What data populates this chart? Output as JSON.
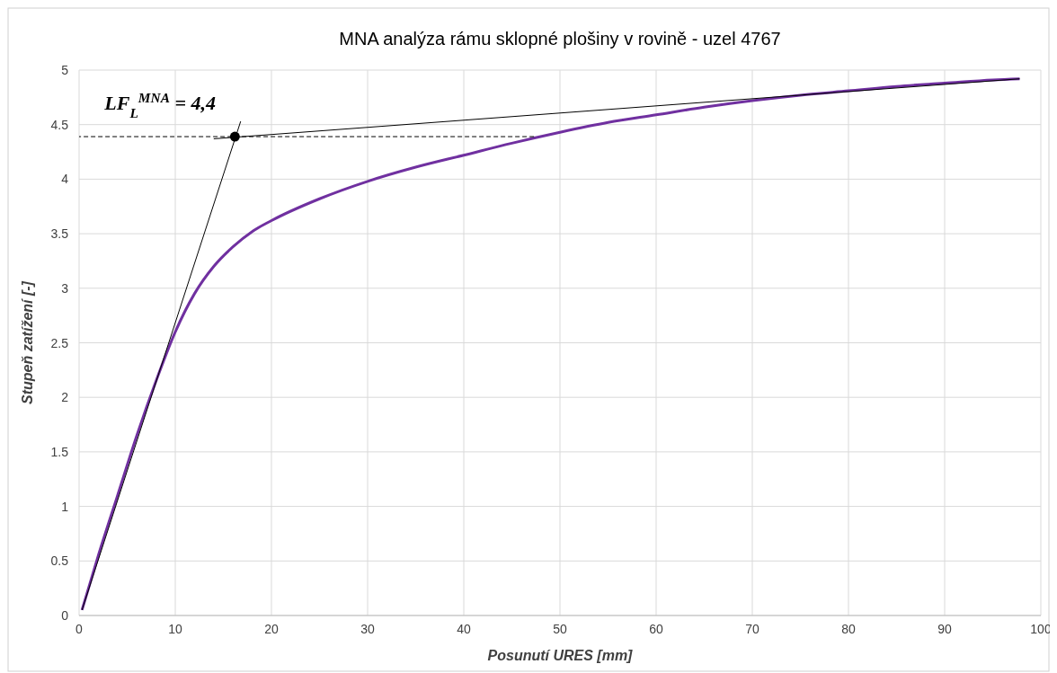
{
  "chart_data": {
    "type": "line",
    "title": "MNA analýza rámu sklopné plošiny v rovině - uzel 4767",
    "xlabel": "Posunutí URES [mm]",
    "ylabel": "Stupeň zatížení [-]",
    "xlim": [
      0,
      100
    ],
    "xticks": [
      0,
      10,
      20,
      30,
      40,
      50,
      60,
      70,
      80,
      90,
      100
    ],
    "ylim": [
      0,
      5
    ],
    "yticks": [
      0,
      0.5,
      1,
      1.5,
      2,
      2.5,
      3,
      3.5,
      4,
      4.5,
      5
    ],
    "grid": true,
    "series": [
      {
        "color": "#7030a0",
        "x": [
          0.3,
          2,
          4,
          6,
          8,
          10,
          12,
          14,
          16,
          18,
          20,
          25,
          30,
          35,
          40,
          45,
          50,
          55,
          60,
          65,
          70,
          75,
          80,
          85,
          90,
          95,
          97.8
        ],
        "values": [
          0.05,
          0.55,
          1.1,
          1.65,
          2.15,
          2.6,
          2.95,
          3.2,
          3.38,
          3.52,
          3.62,
          3.82,
          3.98,
          4.11,
          4.22,
          4.33,
          4.43,
          4.52,
          4.59,
          4.66,
          4.72,
          4.77,
          4.81,
          4.85,
          4.88,
          4.91,
          4.92
        ]
      },
      {
        "color": "#000000",
        "x": [
          0.3,
          16.8
        ],
        "values": [
          0.05,
          4.53
        ]
      },
      {
        "color": "#000000",
        "x": [
          14,
          97.8
        ],
        "values": [
          4.37,
          4.92
        ]
      },
      {
        "color": "#000000",
        "line_style": "dashed",
        "x": [
          0,
          47.3
        ],
        "values": [
          4.39,
          4.39
        ]
      },
      {
        "type": "scatter",
        "color": "#000000",
        "marker": "circle",
        "x": [
          16.2
        ],
        "values": [
          4.39
        ]
      }
    ],
    "annotations": [
      {
        "text": "LF$_{L}$$^{MNA}$ = 4,4",
        "x": 16.2,
        "y": 4.39
      }
    ]
  }
}
